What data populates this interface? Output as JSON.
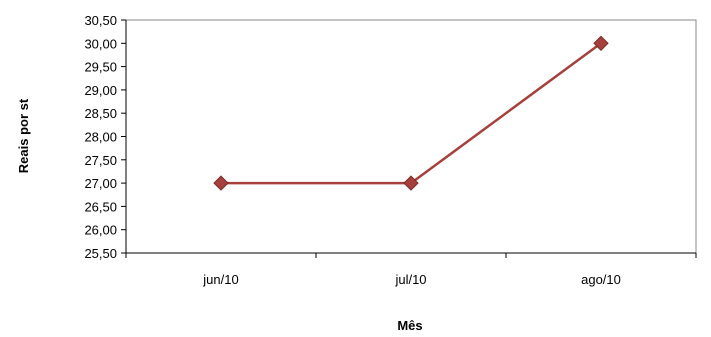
{
  "chart_data": {
    "type": "line",
    "title": "",
    "xlabel": "Mês",
    "ylabel": "Reais por st",
    "categories": [
      "jun/10",
      "jul/10",
      "ago/10"
    ],
    "series": [
      {
        "values": [
          27.0,
          27.0,
          30.0
        ]
      }
    ],
    "ylim": [
      25.5,
      30.5
    ],
    "yticks": [
      "25,50",
      "26,00",
      "26,50",
      "27,00",
      "27,50",
      "28,00",
      "28,50",
      "29,00",
      "29,50",
      "30,00",
      "30,50"
    ],
    "grid": false,
    "legend": "none",
    "colors": {
      "line": "#a6403d",
      "marker": "#a6403d",
      "axis": "#000000",
      "frame": "#888888"
    }
  }
}
